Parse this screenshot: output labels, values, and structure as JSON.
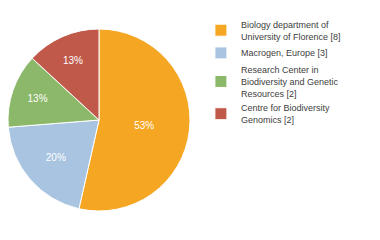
{
  "chart_data": {
    "type": "pie",
    "categories": [
      "Biology department of\nUniversity of Florence [8]",
      "Macrogen, Europe [3]",
      "Research Center in\nBiodiversity and Genetic\nResources [2]",
      "Centre for Biodiversity\nGenomics [2]"
    ],
    "values": [
      53,
      20,
      13,
      13
    ],
    "value_labels": [
      "53%",
      "20%",
      "13%",
      "13%"
    ],
    "colors": [
      "#F5A623",
      "#A8C4E0",
      "#8CB86A",
      "#C0594A"
    ],
    "data_labels": true,
    "legend": "right"
  }
}
